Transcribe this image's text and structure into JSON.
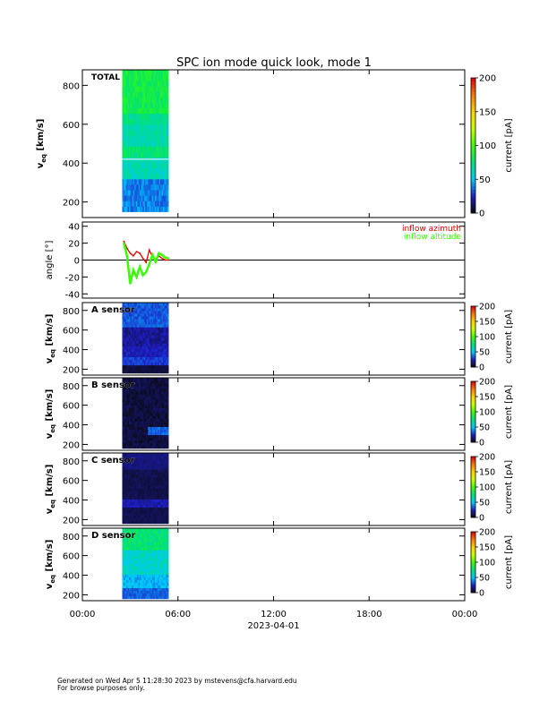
{
  "chart_data": {
    "type": "heatmap",
    "title": "SPC ion mode quick look, mode 1",
    "time_axis": {
      "range_hours": [
        0,
        24
      ],
      "tick_hours": [
        0,
        6,
        12,
        18,
        24
      ],
      "tick_labels": [
        "00:00",
        "06:00",
        "12:00",
        "18:00",
        "00:00"
      ],
      "date_label": "2023-04-01"
    },
    "data_interval_hours": [
      2.5,
      5.4
    ],
    "colorbar": {
      "label": "current [pA]",
      "range": [
        0,
        200
      ],
      "colors": [
        "#0a0a0a",
        "#1e1ec8",
        "#00c8ff",
        "#00e07a",
        "#37ff00",
        "#c8ff00",
        "#ffd200",
        "#ff7800",
        "#e60000"
      ]
    },
    "panels": [
      {
        "id": "total",
        "label": "TOTAL",
        "ylabel": "v_eq [km/s]",
        "ylabel_main": "v",
        "ylabel_sub": "eq",
        "ylabel_unit": "[km/s]",
        "ylim": [
          120,
          880
        ],
        "yticks": [
          200,
          400,
          600,
          800
        ],
        "colorbar_ticks": [
          0,
          50,
          100,
          150,
          200
        ],
        "level_fn": "total"
      },
      {
        "id": "angle",
        "ylabel": "angle [°]",
        "ylim": [
          -45,
          45
        ],
        "yticks": [
          -40,
          -20,
          0,
          20,
          40
        ],
        "legend": [
          {
            "name": "inflow azimuth",
            "color": "#e60000"
          },
          {
            "name": "inflow altitude",
            "color": "#37ff00"
          }
        ],
        "series": [
          {
            "name": "inflow azimuth",
            "x": [
              2.6,
              2.8,
              3.0,
              3.2,
              3.4,
              3.6,
              3.8,
              4.0,
              4.2,
              4.4,
              4.6,
              4.8,
              5.0,
              5.2,
              5.4
            ],
            "y": [
              22,
              14,
              8,
              5,
              10,
              8,
              2,
              -3,
              12,
              4,
              -2,
              5,
              2,
              0,
              0
            ]
          },
          {
            "name": "inflow altitude",
            "x": [
              2.6,
              2.8,
              3.0,
              3.2,
              3.4,
              3.6,
              3.8,
              4.0,
              4.2,
              4.4,
              4.6,
              4.8,
              5.0,
              5.2,
              5.4
            ],
            "y": [
              20,
              5,
              -28,
              -12,
              -20,
              -8,
              -18,
              -14,
              -5,
              6,
              -2,
              8,
              6,
              3,
              2
            ]
          }
        ]
      },
      {
        "id": "a",
        "label": "A sensor",
        "ylabel": "v_eq [km/s]",
        "ylabel_main": "v",
        "ylabel_sub": "eq",
        "ylabel_unit": "[km/s]",
        "ylim": [
          140,
          880
        ],
        "yticks": [
          200,
          400,
          600,
          800
        ],
        "colorbar_ticks": [
          0,
          50,
          100,
          150,
          200
        ],
        "level_fn": "a"
      },
      {
        "id": "b",
        "label": "B sensor",
        "ylabel": "v_eq [km/s]",
        "ylabel_main": "v",
        "ylabel_sub": "eq",
        "ylabel_unit": "[km/s]",
        "ylim": [
          140,
          880
        ],
        "yticks": [
          200,
          400,
          600,
          800
        ],
        "colorbar_ticks": [
          0,
          50,
          100,
          150,
          200
        ],
        "level_fn": "b"
      },
      {
        "id": "c",
        "label": "C sensor",
        "ylabel": "v_eq [km/s]",
        "ylabel_main": "v",
        "ylabel_sub": "eq",
        "ylabel_unit": "[km/s]",
        "ylim": [
          140,
          880
        ],
        "yticks": [
          200,
          400,
          600,
          800
        ],
        "colorbar_ticks": [
          0,
          50,
          100,
          150,
          200
        ],
        "level_fn": "c"
      },
      {
        "id": "d",
        "label": "D sensor",
        "ylabel": "v_eq [km/s]",
        "ylabel_main": "v",
        "ylabel_sub": "eq",
        "ylabel_unit": "[km/s]",
        "ylim": [
          140,
          880
        ],
        "yticks": [
          200,
          400,
          600,
          800
        ],
        "colorbar_ticks": [
          0,
          50,
          100,
          150,
          200
        ],
        "level_fn": "d"
      }
    ]
  },
  "footer": {
    "line1": "Generated on Wed Apr  5 11:28:30 2023 by mstevens@cfa.harvard.edu",
    "line2": "For browse purposes only."
  }
}
